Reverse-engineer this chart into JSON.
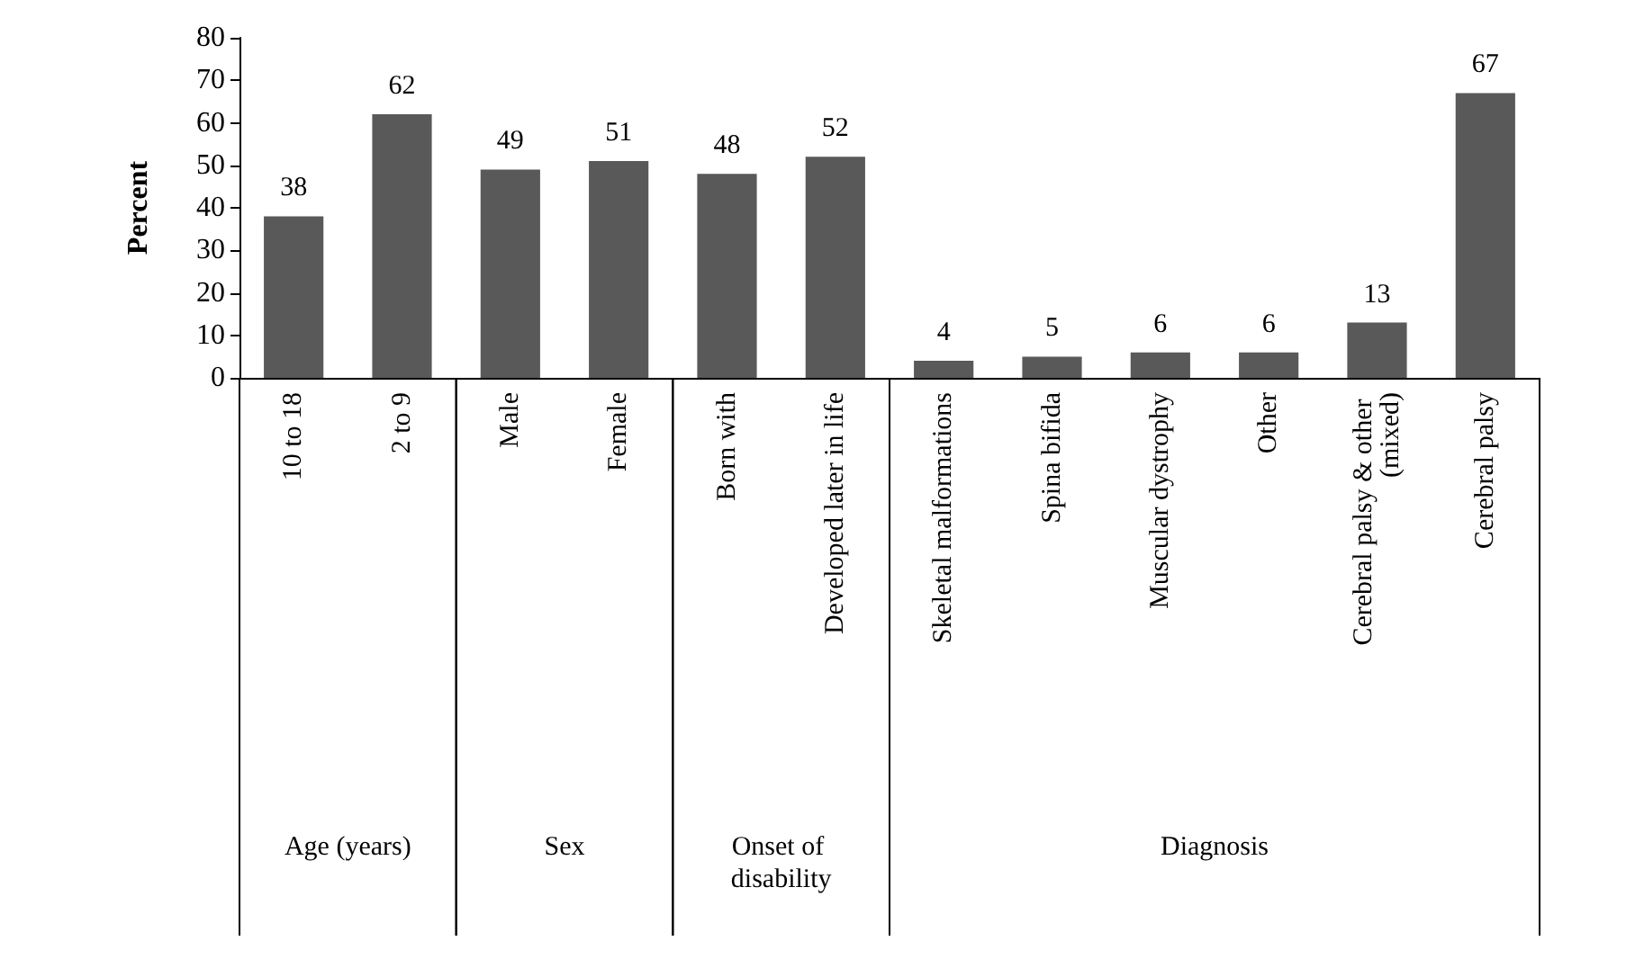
{
  "chart_data": {
    "type": "bar",
    "ylabel": "Percent",
    "categories": [
      "10 to 18",
      "2 to 9",
      "Male",
      "Female",
      "Born with",
      "Developed later in life",
      "Skeletal malformations",
      "Spina bifida",
      "Muscular dystrophy",
      "Other",
      "Cerebral palsy & other (mixed)",
      "Cerebral palsy"
    ],
    "values": [
      38,
      62,
      49,
      51,
      48,
      52,
      4,
      5,
      6,
      6,
      13,
      67
    ],
    "color": "#595959",
    "data_labels": true,
    "grid": false,
    "ylim": [
      0,
      80
    ],
    "yticks": [
      0,
      10,
      20,
      30,
      40,
      50,
      60,
      70,
      80
    ],
    "annotations": [
      "Age (years)",
      "Sex",
      "Onset of disability",
      "Diagnosis"
    ]
  }
}
